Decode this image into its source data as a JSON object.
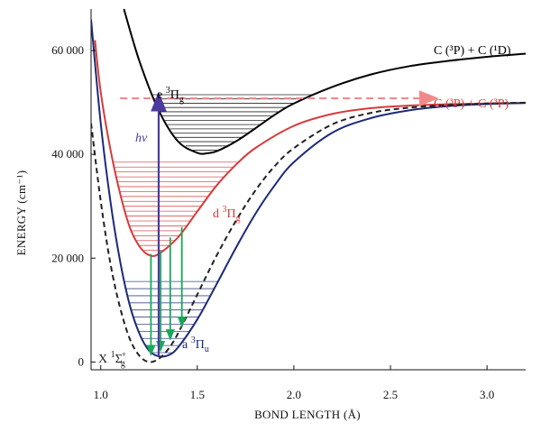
{
  "chart_data": {
    "type": "line",
    "title": "",
    "xlabel": "BOND LENGTH (Å)",
    "ylabel": "ENERGY (cm⁻¹)",
    "xlim": [
      0.95,
      3.2
    ],
    "ylim": [
      -1500,
      68000
    ],
    "x_ticks": [
      1.0,
      1.5,
      2.0,
      2.5,
      3.0
    ],
    "x_tick_labels": [
      "1.0",
      "1.5",
      "2.0",
      "2.5",
      "3.0"
    ],
    "y_ticks": [
      0,
      20000,
      40000,
      60000
    ],
    "y_tick_labels": [
      "0",
      "20 000",
      "40 000",
      "60 000"
    ],
    "colors": {
      "black": "#000000",
      "red": "#d63a3a",
      "navy": "#1c2a78",
      "violet": "#4b3aa0",
      "green": "#18a85a",
      "pink": "#f08a8a",
      "dark_gray": "#222222"
    },
    "series": [
      {
        "name": "e ³Πg",
        "label_main": "e ",
        "label_sup": "3",
        "label_greek": "Π",
        "label_sub": "g",
        "color": "#000000",
        "style": "solid",
        "x": [
          1.12,
          1.2,
          1.3,
          1.4,
          1.5,
          1.55,
          1.6,
          1.7,
          1.8,
          1.9,
          2.0,
          2.2,
          2.4,
          2.6,
          2.8,
          3.0,
          3.2
        ],
        "y": [
          68000,
          58000,
          48500,
          42500,
          40300,
          40200,
          40600,
          42500,
          45000,
          47600,
          49800,
          53000,
          55400,
          57000,
          58000,
          58800,
          59400
        ],
        "vibrational_levels": {
          "count": 14,
          "from": 40800,
          "to": 51500,
          "color": "#000000"
        }
      },
      {
        "name": "d ³Πg",
        "label_main": "d ",
        "label_sup": "3",
        "label_greek": "Π",
        "label_sub": "g",
        "color": "#d63a3a",
        "style": "solid",
        "x": [
          0.97,
          1.0,
          1.05,
          1.1,
          1.15,
          1.2,
          1.25,
          1.3,
          1.4,
          1.5,
          1.6,
          1.7,
          1.8,
          2.0,
          2.2,
          2.4,
          2.6,
          2.8,
          3.0,
          3.2
        ],
        "y": [
          62000,
          52000,
          41000,
          32500,
          26000,
          22300,
          20600,
          20800,
          24000,
          29000,
          34000,
          38000,
          41200,
          45500,
          47800,
          48900,
          49400,
          49650,
          49800,
          49900
        ],
        "vibrational_levels": {
          "count": 19,
          "from": 21500,
          "to": 38500,
          "color": "#d63a3a"
        }
      },
      {
        "name": "a ³Πu",
        "label_main": "a ",
        "label_sup": "3",
        "label_greek": "Π",
        "label_sub": "u",
        "color": "#1c2a78",
        "style": "solid",
        "x": [
          0.95,
          1.0,
          1.05,
          1.1,
          1.15,
          1.2,
          1.25,
          1.3,
          1.35,
          1.4,
          1.5,
          1.6,
          1.7,
          1.8,
          1.9,
          2.0,
          2.2,
          2.4,
          2.6,
          2.8,
          3.0,
          3.2
        ],
        "y": [
          66000,
          46000,
          31000,
          19500,
          11000,
          5500,
          2200,
          1100,
          1300,
          2800,
          8200,
          15000,
          22000,
          28500,
          34000,
          38500,
          44200,
          47000,
          48500,
          49300,
          49700,
          49900
        ],
        "vibrational_levels": {
          "count": 11,
          "from": 1800,
          "to": 15500,
          "color": "#1c2a78"
        }
      },
      {
        "name": "X ¹Σg⁺",
        "label_main": "X ",
        "label_sup": "1",
        "label_greek": "Σ",
        "label_sub": "g",
        "label_sup2": "+",
        "color": "#222222",
        "style": "dashed",
        "x": [
          0.95,
          1.0,
          1.05,
          1.1,
          1.15,
          1.2,
          1.25,
          1.3,
          1.35,
          1.4,
          1.5,
          1.6,
          1.7,
          1.8,
          1.9,
          2.0,
          2.2,
          2.4,
          2.6,
          2.8,
          3.0,
          3.2
        ],
        "y": [
          46000,
          31000,
          19000,
          10500,
          4500,
          1200,
          0,
          600,
          2500,
          5500,
          13000,
          20500,
          27200,
          33000,
          37700,
          41200,
          45800,
          48000,
          49000,
          49500,
          49800,
          49950
        ]
      }
    ],
    "asymptotes": [
      {
        "label": "C (³P) + C (¹D)",
        "x": 3.2,
        "y": 59400,
        "color": "#000000"
      },
      {
        "label": "C (³P) + C (³P)",
        "x": 3.2,
        "y": 49900,
        "color": "#d63a3a"
      }
    ],
    "excitation": {
      "label": "hν",
      "color": "#4b3aa0",
      "x": 1.3,
      "from": 1100,
      "to": 50200
    },
    "emission_arrows": {
      "color": "#18a85a",
      "arrows": [
        {
          "x": 1.26,
          "from": 20800,
          "to": 2200
        },
        {
          "x": 1.31,
          "from": 21500,
          "to": 3000
        },
        {
          "x": 1.36,
          "from": 24000,
          "to": 5200
        },
        {
          "x": 1.42,
          "from": 26000,
          "to": 7700
        }
      ]
    },
    "threshold_arrow": {
      "color": "#f08a8a",
      "y": 50800,
      "from_x": 1.1,
      "to_x": 2.7
    }
  }
}
